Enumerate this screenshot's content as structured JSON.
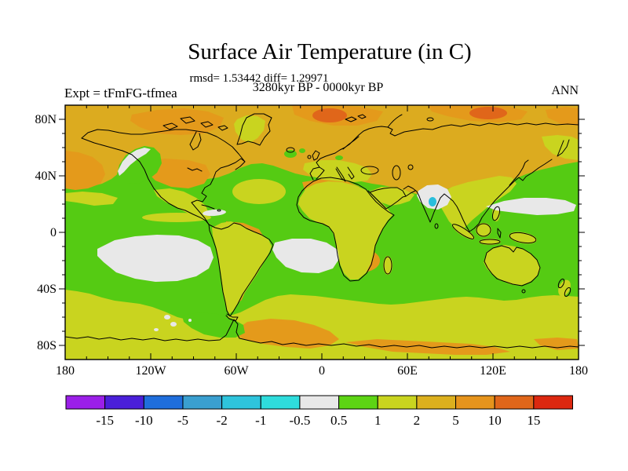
{
  "header": {
    "title": "Surface Air Temperature (in C)",
    "stats_line": "rmsd= 1.53442 diff= 1.29971",
    "period_line": "3280kyr BP - 0000kyr BP",
    "experiment_label": "Expt = tFmFG-tfmea",
    "season_label": "ANN"
  },
  "map": {
    "x_axis": {
      "tick_labels": [
        "180",
        "120W",
        "60W",
        "0",
        "60E",
        "120E",
        "180"
      ],
      "tick_lons": [
        -180,
        -120,
        -60,
        0,
        60,
        120,
        180
      ],
      "minor_step_deg": 15
    },
    "y_axis": {
      "tick_labels": [
        "80N",
        "40N",
        "0",
        "40S",
        "80S"
      ],
      "tick_lats": [
        80,
        40,
        0,
        -40,
        -80
      ],
      "minor_step_deg": 10
    }
  },
  "colorbar": {
    "boundary_labels": [
      "-15",
      "-10",
      "-5",
      "-2",
      "-1",
      "-0.5",
      "0.5",
      "1",
      "2",
      "5",
      "10",
      "15"
    ],
    "colors": [
      "#9b1fe8",
      "#4a1fd9",
      "#1f6edc",
      "#3a9fd0",
      "#2ec4dc",
      "#2edcdc",
      "#e8e8e8",
      "#5dd414",
      "#c9d41f",
      "#dcb01e",
      "#e6941c",
      "#e0661a",
      "#dc2810"
    ]
  },
  "chart_data": {
    "type": "heatmap",
    "title": "Surface Air Temperature (in C)",
    "subtitle_stats": "rmsd= 1.53442 diff= 1.29971",
    "subtitle_period": "3280kyr BP - 0000kyr BP",
    "experiment": "Expt = tFmFG-tfmea",
    "season": "ANN",
    "projection": "equirectangular world map, filled contours of temperature difference (C)",
    "x_range_deg": [
      -180,
      180
    ],
    "y_range_deg": [
      -90,
      90
    ],
    "x_tick_labels": [
      "180",
      "120W",
      "60W",
      "0",
      "60E",
      "120E",
      "180"
    ],
    "y_tick_labels": [
      "80N",
      "40N",
      "0",
      "40S",
      "80S"
    ],
    "contour_levels": [
      -15,
      -10,
      -5,
      -2,
      -1,
      -0.5,
      0.5,
      1,
      2,
      5,
      10,
      15
    ],
    "level_colors": [
      "#9b1fe8",
      "#4a1fd9",
      "#1f6edc",
      "#3a9fd0",
      "#2ec4dc",
      "#2edcdc",
      "#e8e8e8",
      "#5dd414",
      "#c9d41f",
      "#dcb01e",
      "#e6941c",
      "#e0661a",
      "#dc2810"
    ],
    "regions": [
      {
        "area": "Arctic, high northern latitudes, Eurasia and North Atlantic north of ~45N",
        "value_range_c": "2 to 5"
      },
      {
        "area": "Small cores north of Svalbard and in the East Siberian Arctic",
        "value_range_c": "5 to 10"
      },
      {
        "area": "Mid-latitude and tropical oceans (Pacific, Atlantic, Indian)",
        "value_range_c": "0.5 to 1"
      },
      {
        "area": "Southern Ocean band, Mediterranean, SE Asia, Australia, most tropical continents",
        "value_range_c": "1 to 2"
      },
      {
        "area": "USA interior, Sahara, Amazon, southern Africa, Argentina, East Antarctica, NE Pacific",
        "value_range_c": "2 to 5"
      },
      {
        "area": "Near-zero patches: NE Pacific coast, SE Pacific, South Atlantic, Caribbean, NW India, NW Pacific, near Antarctica",
        "value_range_c": "-0.5 to 0.5"
      },
      {
        "area": "Small spot over NW India",
        "value_range_c": "-2 to -1"
      }
    ]
  }
}
